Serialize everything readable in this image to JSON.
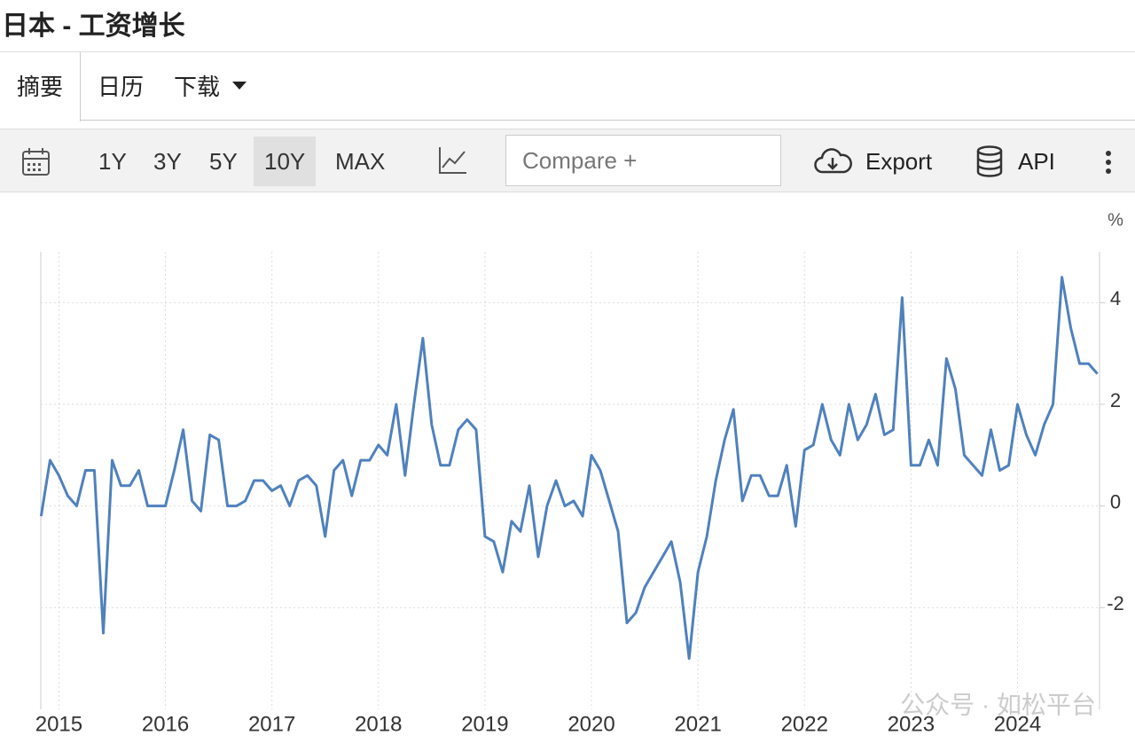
{
  "header": {
    "title": "日本 - 工资增长"
  },
  "tabs": [
    "摘要",
    "日历",
    "下载"
  ],
  "toolbar": {
    "ranges": [
      "1Y",
      "3Y",
      "5Y",
      "10Y",
      "MAX"
    ],
    "compare": "Compare +",
    "export": "Export",
    "api": "API"
  },
  "watermark": "公众号 · 如松平台",
  "chart_data": {
    "type": "line",
    "unit": "%",
    "grid": true,
    "xlim": [
      2014.83,
      2024.77
    ],
    "xticks": [
      2015,
      2016,
      2017,
      2018,
      2019,
      2020,
      2021,
      2022,
      2023,
      2024
    ],
    "ylim": [
      -4,
      5
    ],
    "yticks": [
      -2,
      0,
      2,
      4
    ],
    "x": [
      2014.833,
      2014.917,
      2015.0,
      2015.083,
      2015.167,
      2015.25,
      2015.333,
      2015.417,
      2015.5,
      2015.583,
      2015.667,
      2015.75,
      2015.833,
      2015.917,
      2016.0,
      2016.083,
      2016.167,
      2016.25,
      2016.333,
      2016.417,
      2016.5,
      2016.583,
      2016.667,
      2016.75,
      2016.833,
      2016.917,
      2017.0,
      2017.083,
      2017.167,
      2017.25,
      2017.333,
      2017.417,
      2017.5,
      2017.583,
      2017.667,
      2017.75,
      2017.833,
      2017.917,
      2018.0,
      2018.083,
      2018.167,
      2018.25,
      2018.333,
      2018.417,
      2018.5,
      2018.583,
      2018.667,
      2018.75,
      2018.833,
      2018.917,
      2019.0,
      2019.083,
      2019.167,
      2019.25,
      2019.333,
      2019.417,
      2019.5,
      2019.583,
      2019.667,
      2019.75,
      2019.833,
      2019.917,
      2020.0,
      2020.083,
      2020.167,
      2020.25,
      2020.333,
      2020.417,
      2020.5,
      2020.583,
      2020.667,
      2020.75,
      2020.833,
      2020.917,
      2021.0,
      2021.083,
      2021.167,
      2021.25,
      2021.333,
      2021.417,
      2021.5,
      2021.583,
      2021.667,
      2021.75,
      2021.833,
      2021.917,
      2022.0,
      2022.083,
      2022.167,
      2022.25,
      2022.333,
      2022.417,
      2022.5,
      2022.583,
      2022.667,
      2022.75,
      2022.833,
      2022.917,
      2023.0,
      2023.083,
      2023.167,
      2023.25,
      2023.333,
      2023.417,
      2023.5,
      2023.583,
      2023.667,
      2023.75,
      2023.833,
      2023.917,
      2024.0,
      2024.083,
      2024.167,
      2024.25,
      2024.333,
      2024.417,
      2024.5,
      2024.583,
      2024.667,
      2024.75
    ],
    "series": [
      {
        "name": "工资增长",
        "color": "#4f81bd",
        "values": [
          -0.2,
          0.9,
          0.6,
          0.2,
          0,
          0.7,
          0.7,
          -2.5,
          0.9,
          0.4,
          0.4,
          0.7,
          0,
          0,
          0,
          0.7,
          1.5,
          0.1,
          -0.1,
          1.4,
          1.3,
          0,
          0,
          0.1,
          0.5,
          0.5,
          0.3,
          0.4,
          0,
          0.5,
          0.6,
          0.4,
          -0.6,
          0.7,
          0.9,
          0.2,
          0.9,
          0.9,
          1.2,
          1.0,
          2.0,
          0.6,
          2.0,
          3.3,
          1.6,
          0.8,
          0.8,
          1.5,
          1.7,
          1.5,
          -0.6,
          -0.7,
          -1.3,
          -0.3,
          -0.5,
          0.4,
          -1.0,
          0,
          0.5,
          0,
          0.1,
          -0.2,
          1.0,
          0.7,
          0.1,
          -0.5,
          -2.3,
          -2.1,
          -1.6,
          -1.3,
          -1.0,
          -0.7,
          -1.5,
          -3.0,
          -1.3,
          -0.6,
          0.5,
          1.3,
          1.9,
          0.1,
          0.6,
          0.6,
          0.2,
          0.2,
          0.8,
          -0.4,
          1.1,
          1.2,
          2.0,
          1.3,
          1.0,
          2.0,
          1.3,
          1.6,
          2.2,
          1.4,
          1.5,
          4.1,
          0.8,
          0.8,
          1.3,
          0.8,
          2.9,
          2.3,
          1.0,
          0.8,
          0.6,
          1.5,
          0.7,
          0.8,
          2.0,
          1.4,
          1.0,
          1.6,
          2.0,
          4.5,
          3.5,
          2.8,
          2.8,
          2.6
        ]
      }
    ]
  }
}
